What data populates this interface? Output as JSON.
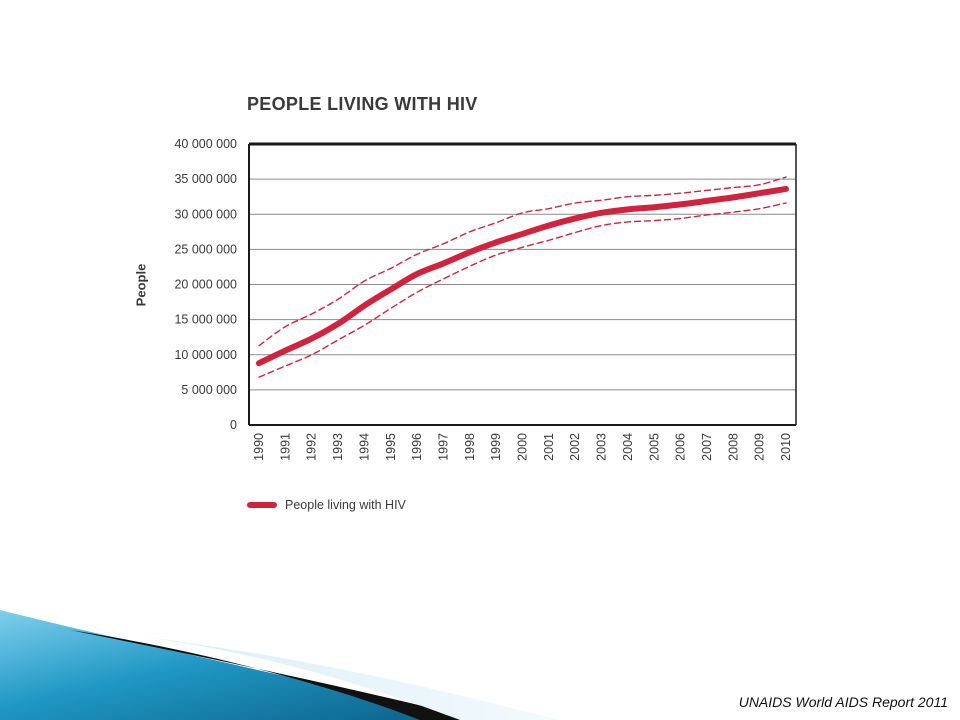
{
  "source_caption": "UNAIDS World AIDS Report 2011",
  "colors": {
    "line": "#d2233e",
    "axis": "#1a1a1a",
    "grid": "#8c8c8c"
  },
  "chart_data": {
    "type": "line",
    "title": "PEOPLE LIVING WITH HIV",
    "ylabel": "People",
    "xlabel": "",
    "ylim": [
      0,
      40000000
    ],
    "y_ticks": [
      0,
      5000000,
      10000000,
      15000000,
      20000000,
      25000000,
      30000000,
      35000000,
      40000000
    ],
    "y_tick_labels": [
      "0",
      "5 000 000",
      "10 000 000",
      "15 000 000",
      "20 000 000",
      "25 000 000",
      "30 000 000",
      "35 000 000",
      "40 000 000"
    ],
    "categories": [
      "1990",
      "1991",
      "1992",
      "1993",
      "1994",
      "1995",
      "1996",
      "1997",
      "1998",
      "1999",
      "2000",
      "2001",
      "2002",
      "2003",
      "2004",
      "2005",
      "2006",
      "2007",
      "2008",
      "2009",
      "2010"
    ],
    "grid": true,
    "legend": {
      "position": "bottom-left",
      "entries": [
        "People living with HIV"
      ]
    },
    "series": [
      {
        "name": "People living with HIV",
        "style": "solid",
        "values": [
          8800000,
          10600000,
          12300000,
          14400000,
          17000000,
          19300000,
          21500000,
          23000000,
          24600000,
          26000000,
          27200000,
          28400000,
          29400000,
          30200000,
          30700000,
          31000000,
          31400000,
          31900000,
          32400000,
          33000000,
          33600000
        ]
      },
      {
        "name": "",
        "style": "dashed-upper",
        "values": [
          11300000,
          14000000,
          15800000,
          17900000,
          20500000,
          22300000,
          24300000,
          25800000,
          27500000,
          28800000,
          30200000,
          30800000,
          31600000,
          32000000,
          32500000,
          32700000,
          33000000,
          33400000,
          33800000,
          34200000,
          35300000
        ]
      },
      {
        "name": "",
        "style": "dashed-lower",
        "values": [
          6800000,
          8400000,
          10000000,
          12100000,
          14200000,
          16600000,
          18900000,
          20800000,
          22600000,
          24200000,
          25300000,
          26300000,
          27400000,
          28400000,
          28900000,
          29100000,
          29400000,
          29900000,
          30300000,
          30800000,
          31600000
        ]
      }
    ]
  }
}
